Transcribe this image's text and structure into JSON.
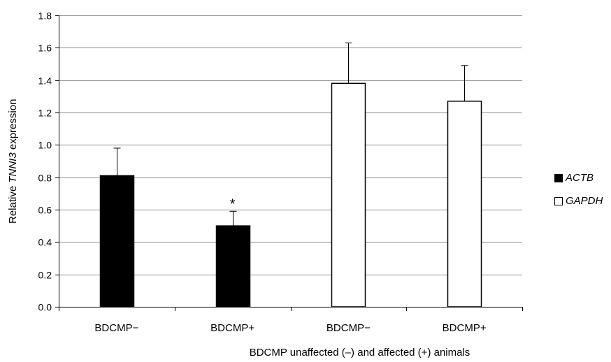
{
  "chart_data": {
    "type": "bar",
    "categories": [
      "BDCMP−",
      "BDCMP+",
      "BDCMP−",
      "BDCMP+"
    ],
    "series": [
      {
        "name": "ACTB",
        "color": "#000000",
        "fill": "#000000",
        "values": [
          0.81,
          0.5,
          null,
          null
        ],
        "errors": [
          0.17,
          0.09,
          null,
          null
        ]
      },
      {
        "name": "GAPDH",
        "color": "#000000",
        "fill": "#ffffff",
        "values": [
          null,
          null,
          1.38,
          1.27
        ],
        "errors": [
          null,
          null,
          0.25,
          0.22
        ]
      }
    ],
    "annotations": [
      {
        "category_index": 1,
        "text": "*"
      }
    ],
    "ylim": [
      0,
      1.8
    ],
    "yticks": [
      "0.0",
      "0.2",
      "0.4",
      "0.6",
      "0.8",
      "1.0",
      "1.2",
      "1.4",
      "1.6",
      "1.8"
    ],
    "ylabel_prefix": "Relative ",
    "ylabel_gene": "TNNI3",
    "ylabel_suffix": " expression",
    "xlabel": "BDCMP unaffected (–) and affected (+) animals",
    "grid": true,
    "legend_position": "right"
  }
}
